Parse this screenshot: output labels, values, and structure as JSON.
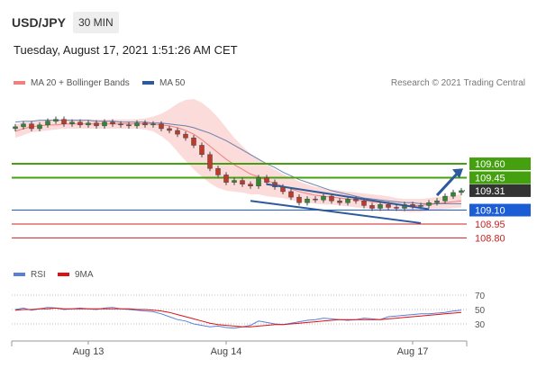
{
  "header": {
    "symbol": "USD/JPY",
    "timeframe": "30 MIN",
    "datetime": "Tuesday, August 17, 2021 1:51:26 AM CET"
  },
  "legend": {
    "ma20_label": "MA 20 + Bollinger Bands",
    "ma50_label": "MA 50",
    "rsi_label": "RSI",
    "ma9_label": "9MA"
  },
  "credit": "Research © 2021 Trading Central",
  "colors": {
    "ma20": "#f08080",
    "ma50": "#2d5a9a",
    "bollinger_fill": "#fbd5d5",
    "resistance": "#44a00e",
    "support_blue": "#1c5dd6",
    "support_red": "#cc2222",
    "current": "#333333",
    "rsi": "#5b7fd6",
    "rsi_ma": "#dd1111"
  },
  "chart_data": [
    {
      "type": "line",
      "name": "price",
      "x_ticks": [
        "Aug 13",
        "Aug 14",
        "Aug 17"
      ],
      "ylim": [
        108.6,
        110.3
      ],
      "close": [
        110.0,
        110.03,
        109.98,
        110.02,
        110.06,
        110.08,
        110.03,
        110.05,
        110.02,
        110.04,
        110.01,
        110.05,
        110.03,
        110.02,
        110.01,
        110.04,
        110.02,
        110.03,
        109.98,
        109.96,
        109.92,
        109.88,
        109.8,
        109.7,
        109.55,
        109.48,
        109.4,
        109.42,
        109.38,
        109.36,
        109.45,
        109.4,
        109.35,
        109.3,
        109.24,
        109.18,
        109.22,
        109.21,
        109.25,
        109.2,
        109.18,
        109.22,
        109.2,
        109.15,
        109.12,
        109.16,
        109.13,
        109.12,
        109.16,
        109.14,
        109.15,
        109.18,
        109.2,
        109.25,
        109.29,
        109.31
      ],
      "ma20": [
        109.95,
        109.98,
        110.0,
        110.01,
        110.02,
        110.02,
        110.03,
        110.03,
        110.03,
        110.03,
        110.03,
        110.03,
        110.03,
        110.03,
        110.03,
        110.03,
        110.03,
        110.03,
        110.02,
        110.01,
        109.99,
        109.96,
        109.92,
        109.86,
        109.79,
        109.72,
        109.65,
        109.59,
        109.54,
        109.49,
        109.46,
        109.42,
        109.39,
        109.36,
        109.33,
        109.3,
        109.28,
        109.26,
        109.25,
        109.24,
        109.23,
        109.22,
        109.21,
        109.2,
        109.19,
        109.18,
        109.17,
        109.16,
        109.15,
        109.15,
        109.15,
        109.16,
        109.17,
        109.18,
        109.19,
        109.2
      ],
      "ma50": [
        110.05,
        110.06,
        110.06,
        110.07,
        110.07,
        110.07,
        110.07,
        110.07,
        110.07,
        110.07,
        110.06,
        110.06,
        110.06,
        110.05,
        110.05,
        110.05,
        110.05,
        110.04,
        110.04,
        110.03,
        110.02,
        110.01,
        109.99,
        109.96,
        109.93,
        109.89,
        109.85,
        109.8,
        109.75,
        109.7,
        109.65,
        109.6,
        109.56,
        109.51,
        109.47,
        109.43,
        109.4,
        109.37,
        109.34,
        109.31,
        109.29,
        109.27,
        109.25,
        109.23,
        109.22,
        109.21,
        109.2,
        109.19,
        109.18,
        109.18,
        109.17,
        109.17,
        109.17,
        109.17,
        109.17,
        109.17
      ],
      "bb_width": [
        0.07,
        0.07,
        0.06,
        0.06,
        0.06,
        0.05,
        0.05,
        0.05,
        0.05,
        0.05,
        0.05,
        0.05,
        0.05,
        0.05,
        0.05,
        0.05,
        0.06,
        0.08,
        0.12,
        0.18,
        0.26,
        0.33,
        0.38,
        0.4,
        0.4,
        0.38,
        0.34,
        0.29,
        0.25,
        0.22,
        0.19,
        0.17,
        0.15,
        0.13,
        0.12,
        0.11,
        0.1,
        0.09,
        0.09,
        0.08,
        0.08,
        0.08,
        0.08,
        0.08,
        0.08,
        0.08,
        0.08,
        0.07,
        0.07,
        0.07,
        0.07,
        0.07,
        0.07,
        0.07,
        0.07,
        0.07
      ],
      "levels": [
        {
          "value": "109.60",
          "kind": "resistance"
        },
        {
          "value": "109.45",
          "kind": "resistance"
        },
        {
          "value": "109.31",
          "kind": "current"
        },
        {
          "value": "109.10",
          "kind": "support_blue"
        },
        {
          "value": "108.95",
          "kind": "support_red"
        },
        {
          "value": "108.80",
          "kind": "support_red"
        }
      ],
      "channel": {
        "upper": [
          [
            31,
            109.38
          ],
          [
            51,
            109.11
          ]
        ],
        "lower": [
          [
            29,
            109.2
          ],
          [
            50,
            108.96
          ]
        ]
      },
      "arrow": {
        "from": [
          52,
          109.26
        ],
        "to": [
          56,
          109.55
        ]
      }
    },
    {
      "type": "line",
      "name": "rsi",
      "ylim": [
        15,
        85
      ],
      "y_ticks": [
        "70",
        "50",
        "30"
      ],
      "rsi": [
        50,
        52,
        49,
        51,
        53,
        52,
        50,
        51,
        52,
        51,
        50,
        52,
        53,
        51,
        50,
        49,
        48,
        47,
        44,
        40,
        36,
        34,
        30,
        28,
        26,
        27,
        25,
        24,
        26,
        28,
        34,
        32,
        30,
        29,
        31,
        33,
        35,
        36,
        38,
        37,
        36,
        35,
        36,
        38,
        37,
        36,
        40,
        41,
        42,
        43,
        44,
        44,
        45,
        46,
        48,
        49
      ],
      "rsi_ma": [
        49,
        50,
        50,
        51,
        51,
        52,
        51,
        51,
        51,
        51,
        51,
        51,
        51,
        51,
        51,
        50,
        50,
        49,
        48,
        46,
        43,
        40,
        37,
        34,
        31,
        29,
        28,
        27,
        26,
        26,
        27,
        28,
        29,
        29,
        30,
        31,
        32,
        33,
        34,
        35,
        36,
        36,
        36,
        36,
        36,
        36,
        37,
        38,
        39,
        40,
        41,
        42,
        43,
        44,
        45,
        46
      ]
    }
  ]
}
